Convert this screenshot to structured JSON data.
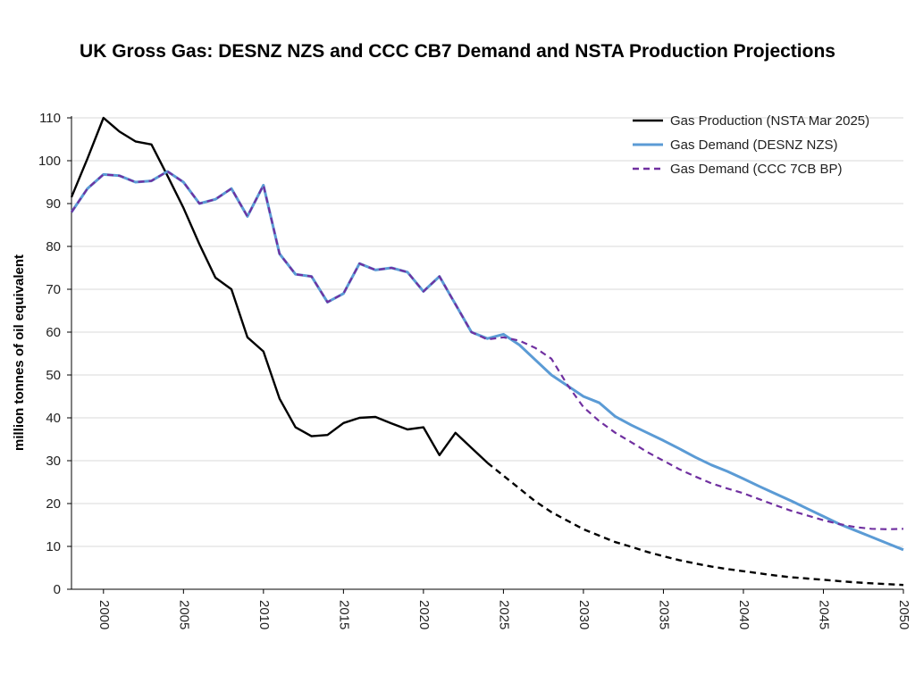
{
  "chart_data": {
    "type": "line",
    "title": "UK Gross Gas: DESNZ NZS and CCC CB7 Demand and NSTA Production Projections",
    "ylabel": "million tonnes of oil equivalent",
    "xlabel": "",
    "xlim": [
      1998,
      2050
    ],
    "ylim": [
      0,
      110
    ],
    "yticks": [
      0,
      10,
      20,
      30,
      40,
      50,
      60,
      70,
      80,
      90,
      100,
      110
    ],
    "xticks": [
      2000,
      2005,
      2010,
      2015,
      2020,
      2025,
      2030,
      2035,
      2040,
      2045,
      2050
    ],
    "grid": "horizontal",
    "legend_position": "top-right",
    "series": [
      {
        "name": "Gas Production (NSTA Mar 2025)",
        "color": "#000000",
        "style": "solid-then-dashed",
        "dash_from": 2024,
        "x": [
          1998,
          1999,
          2000,
          2001,
          2002,
          2003,
          2004,
          2005,
          2006,
          2007,
          2008,
          2009,
          2010,
          2011,
          2012,
          2013,
          2014,
          2015,
          2016,
          2017,
          2018,
          2019,
          2020,
          2021,
          2022,
          2023,
          2024,
          2025,
          2026,
          2027,
          2028,
          2029,
          2030,
          2031,
          2032,
          2033,
          2034,
          2035,
          2036,
          2037,
          2038,
          2039,
          2040,
          2041,
          2042,
          2043,
          2044,
          2045,
          2046,
          2047,
          2048,
          2049,
          2050
        ],
        "y": [
          91.5,
          100.5,
          110,
          106.8,
          104.5,
          103.8,
          96.5,
          89,
          80.5,
          72.7,
          70,
          58.8,
          55.5,
          44.5,
          37.8,
          35.7,
          36,
          38.8,
          40,
          40.2,
          38.7,
          37.3,
          37.8,
          31.3,
          36.5,
          33,
          29.5,
          26.5,
          23.5,
          20.5,
          18,
          16,
          14,
          12.5,
          11,
          9.9,
          8.7,
          7.7,
          6.8,
          6.0,
          5.3,
          4.7,
          4.2,
          3.7,
          3.2,
          2.8,
          2.5,
          2.2,
          1.9,
          1.6,
          1.4,
          1.2,
          1.0
        ]
      },
      {
        "name": "Gas Demand (DESNZ NZS)",
        "color": "#5b9bd5",
        "style": "solid",
        "x": [
          1998,
          1999,
          2000,
          2001,
          2002,
          2003,
          2004,
          2005,
          2006,
          2007,
          2008,
          2009,
          2010,
          2011,
          2012,
          2013,
          2014,
          2015,
          2016,
          2017,
          2018,
          2019,
          2020,
          2021,
          2022,
          2023,
          2024,
          2025,
          2026,
          2027,
          2028,
          2029,
          2030,
          2031,
          2032,
          2033,
          2034,
          2035,
          2036,
          2037,
          2038,
          2039,
          2040,
          2041,
          2042,
          2043,
          2044,
          2045,
          2046,
          2047,
          2048,
          2049,
          2050
        ],
        "y": [
          88,
          93.5,
          96.8,
          96.5,
          95,
          95.3,
          97.5,
          95,
          90,
          91,
          93.5,
          87,
          94.3,
          78.3,
          73.5,
          73,
          67,
          69,
          76,
          74.5,
          75,
          74,
          69.5,
          73,
          66.5,
          60,
          58.5,
          59.5,
          57,
          53.5,
          50,
          47.5,
          45,
          43.5,
          40.3,
          38.3,
          36.5,
          34.7,
          32.8,
          30.8,
          29,
          27.5,
          25.8,
          24,
          22.3,
          20.6,
          18.8,
          17,
          15.2,
          13.7,
          12.2,
          10.7,
          9.2
        ]
      },
      {
        "name": "Gas Demand (CCC 7CB BP)",
        "color": "#7030a0",
        "style": "dashed",
        "x": [
          1998,
          1999,
          2000,
          2001,
          2002,
          2003,
          2004,
          2005,
          2006,
          2007,
          2008,
          2009,
          2010,
          2011,
          2012,
          2013,
          2014,
          2015,
          2016,
          2017,
          2018,
          2019,
          2020,
          2021,
          2022,
          2023,
          2024,
          2025,
          2026,
          2027,
          2028,
          2029,
          2030,
          2031,
          2032,
          2033,
          2034,
          2035,
          2036,
          2037,
          2038,
          2039,
          2040,
          2041,
          2042,
          2043,
          2044,
          2045,
          2046,
          2047,
          2048,
          2049,
          2050
        ],
        "y": [
          88,
          93.5,
          96.8,
          96.5,
          95,
          95.3,
          97.5,
          95,
          90,
          91,
          93.5,
          87,
          94.3,
          78.3,
          73.5,
          73,
          67,
          69,
          76,
          74.5,
          75,
          74,
          69.5,
          73,
          66.5,
          60,
          58.3,
          58.8,
          58,
          56.3,
          53.8,
          47.7,
          42.5,
          39.2,
          36.5,
          34.3,
          32,
          30,
          28,
          26.3,
          24.7,
          23.5,
          22.4,
          21,
          19.6,
          18.3,
          17.2,
          16.1,
          15.2,
          14.5,
          14.1,
          14,
          14.1
        ]
      }
    ]
  }
}
